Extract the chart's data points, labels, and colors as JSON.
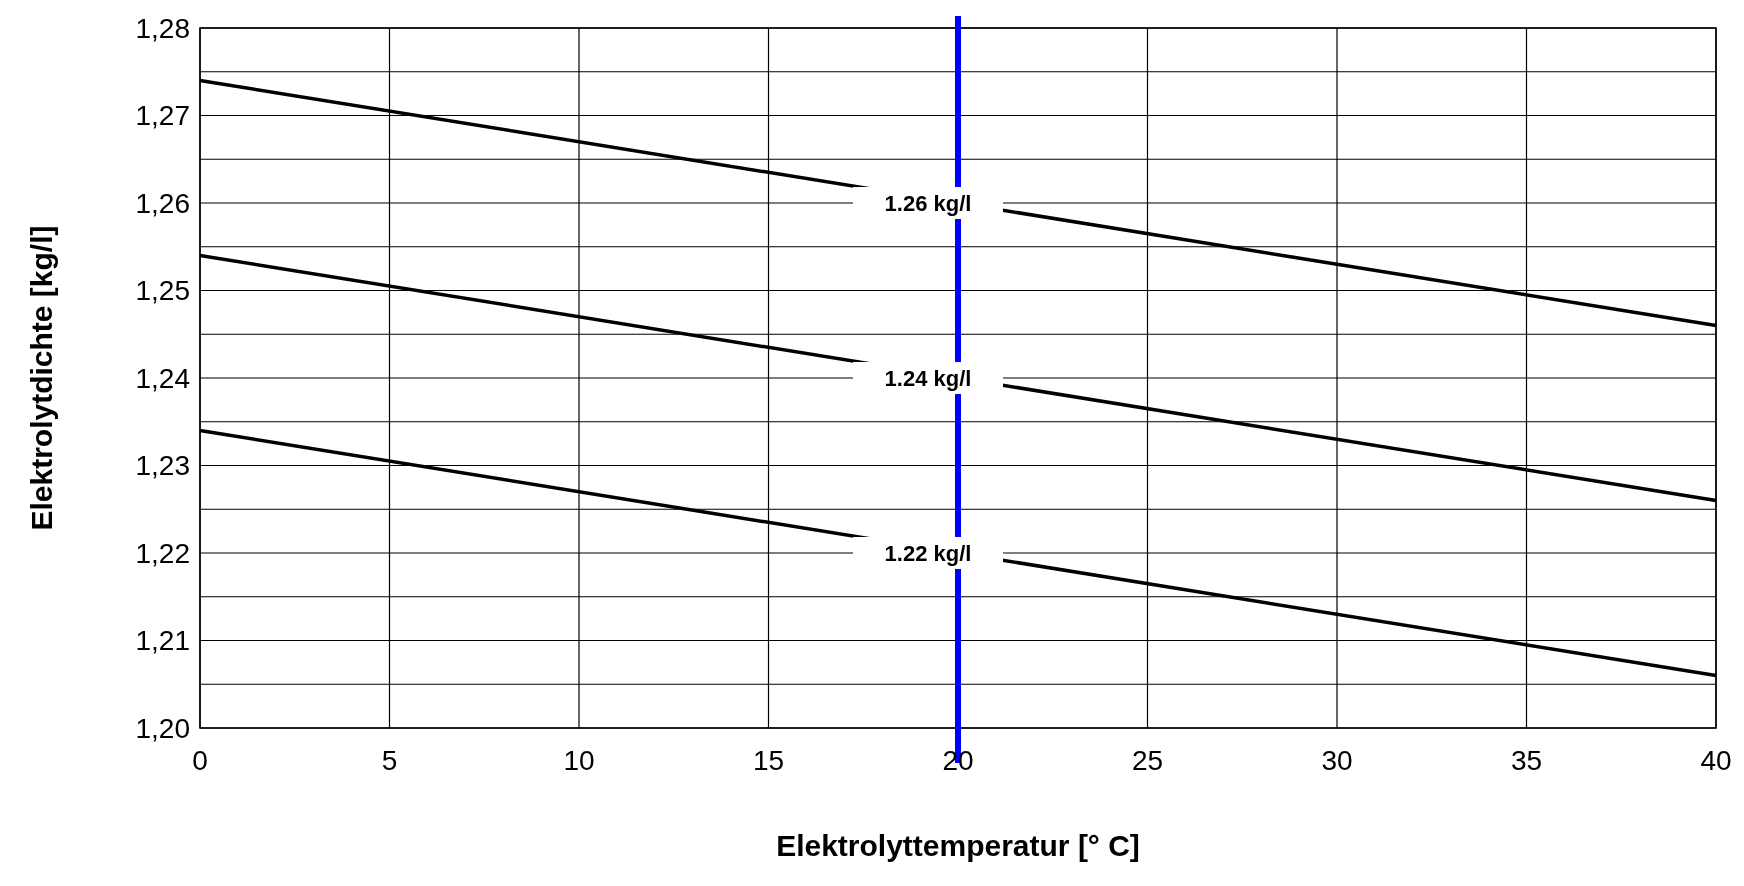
{
  "chart_data": {
    "type": "line",
    "xlabel": "Elektrolyttemperatur [° C]",
    "ylabel": "Elektrolytdichte [kg/l]",
    "x": [
      0,
      40
    ],
    "series": [
      {
        "name": "1.26 kg/l",
        "color": "#000000",
        "values": [
          1.274,
          1.246
        ]
      },
      {
        "name": "1.24 kg/l",
        "color": "#000000",
        "values": [
          1.254,
          1.226
        ]
      },
      {
        "name": "1.22 kg/l",
        "color": "#000000",
        "values": [
          1.234,
          1.206
        ]
      }
    ],
    "xlim": [
      0,
      40
    ],
    "xticks": [
      0,
      5,
      10,
      15,
      20,
      25,
      30,
      35,
      40
    ],
    "ylim": [
      1.2,
      1.28
    ],
    "yticks": [
      {
        "value": 1.2,
        "label": "1,20"
      },
      {
        "value": 1.205,
        "label": null
      },
      {
        "value": 1.21,
        "label": "1,21"
      },
      {
        "value": 1.215,
        "label": null
      },
      {
        "value": 1.22,
        "label": "1,22"
      },
      {
        "value": 1.225,
        "label": null
      },
      {
        "value": 1.23,
        "label": "1,23"
      },
      {
        "value": 1.235,
        "label": null
      },
      {
        "value": 1.24,
        "label": "1,24"
      },
      {
        "value": 1.245,
        "label": null
      },
      {
        "value": 1.25,
        "label": "1,25"
      },
      {
        "value": 1.255,
        "label": null
      },
      {
        "value": 1.26,
        "label": "1,26"
      },
      {
        "value": 1.265,
        "label": null
      },
      {
        "value": 1.27,
        "label": "1,27"
      },
      {
        "value": 1.275,
        "label": null
      },
      {
        "value": 1.28,
        "label": "1,28"
      }
    ],
    "ref_lines": [
      {
        "axis": "x",
        "value": 20,
        "color": "#0000ff"
      }
    ],
    "grid": true,
    "marker": "none",
    "line_style": "solid"
  }
}
